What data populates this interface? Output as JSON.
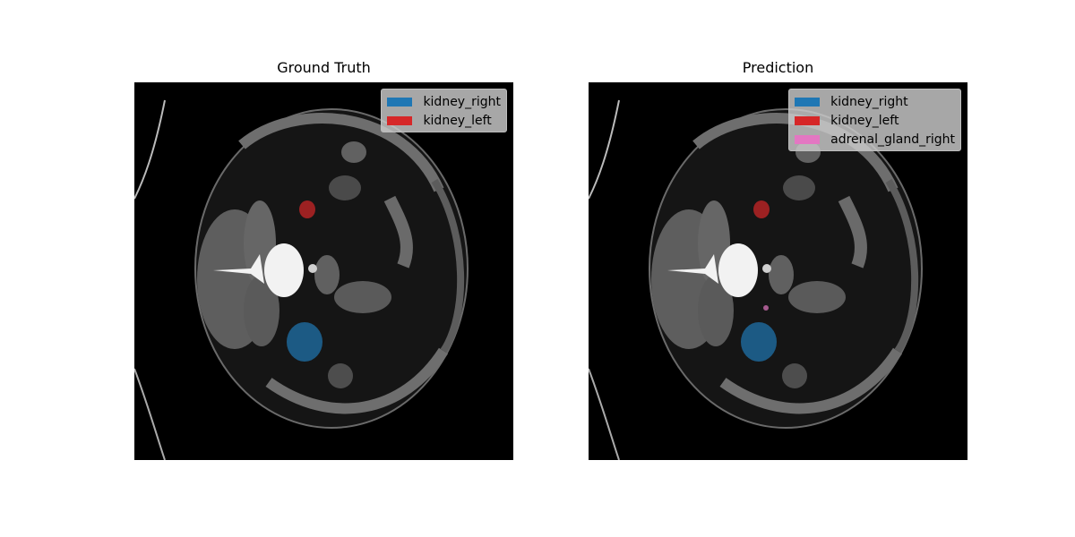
{
  "panels": [
    {
      "title": "Ground Truth",
      "legend": [
        {
          "label": "kidney_right",
          "color": "#1f77b4"
        },
        {
          "label": "kidney_left",
          "color": "#d62728"
        }
      ]
    },
    {
      "title": "Prediction",
      "legend": [
        {
          "label": "kidney_right",
          "color": "#1f77b4"
        },
        {
          "label": "kidney_left",
          "color": "#d62728"
        },
        {
          "label": "adrenal_gland_right",
          "color": "#e377c2"
        }
      ]
    }
  ]
}
